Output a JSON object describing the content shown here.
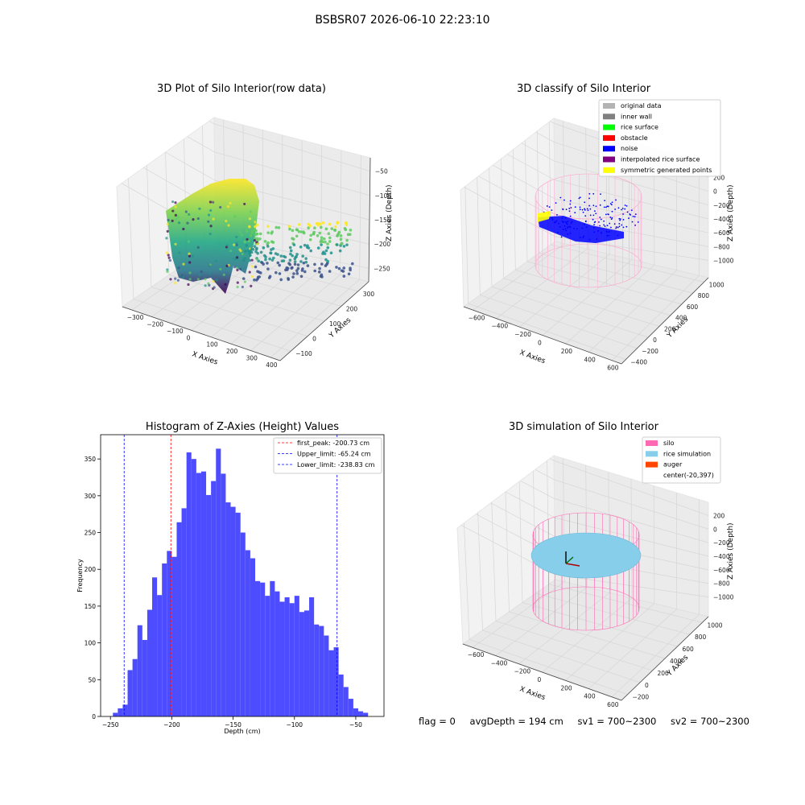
{
  "figure": {
    "suptitle": "BSBSR07 2026-06-10 22:23:10"
  },
  "footer": {
    "flag": "flag = 0",
    "avg_depth": "avgDepth = 194 cm",
    "sv1": "sv1 = 700~2300",
    "sv2": "sv2 = 700~2300"
  },
  "colors": {
    "histogram_bar": "#4d4dff",
    "first_peak_line": "#ff0000",
    "limit_lines": "#0000ff",
    "silo_mesh": "#ff69b4",
    "rice_simulation": "#87ceeb",
    "auger": "#ff4500",
    "original_data": "#b3b3b3",
    "inner_wall": "#808080",
    "rice_surface": "#00ff00",
    "obstacle": "#ff0000",
    "noise": "#0000ff",
    "interpolated_rice_surface": "#800080",
    "symmetric_generated_points": "#ffff00"
  },
  "chart_data": [
    {
      "type": "scatter",
      "subtype": "3d",
      "title": "3D Plot of Silo Interior(row data)",
      "xlabel": "X Axies",
      "ylabel": "Y Axies",
      "zlabel": "Z Axies (Depth)",
      "xticks": [
        "−300",
        "−200",
        "−100",
        "0",
        "100",
        "200",
        "300",
        "400"
      ],
      "yticks": [
        "−100",
        "0",
        "100",
        "200",
        "300"
      ],
      "zticks": [
        "−50",
        "−100",
        "−150",
        "−200",
        "−250"
      ],
      "colormap": "viridis"
    },
    {
      "type": "scatter",
      "subtype": "3d",
      "title": "3D classify of Silo Interior",
      "xlabel": "X Axies",
      "ylabel": "Y Axies",
      "zlabel": "Z Axies (Depth)",
      "xticks": [
        "−600",
        "−400",
        "−200",
        "0",
        "200",
        "400",
        "600"
      ],
      "yticks": [
        "−400",
        "−200",
        "0",
        "200",
        "400",
        "600",
        "800",
        "1000"
      ],
      "zticks": [
        "200",
        "0",
        "−200",
        "−400",
        "−600",
        "−800",
        "−1000"
      ],
      "legend": [
        {
          "label": "original data",
          "color": "#b3b3b3"
        },
        {
          "label": "inner wall",
          "color": "#808080"
        },
        {
          "label": "rice surface",
          "color": "#00ff00"
        },
        {
          "label": "obstacle",
          "color": "#ff0000"
        },
        {
          "label": "noise",
          "color": "#0000ff"
        },
        {
          "label": "interpolated rice surface",
          "color": "#800080"
        },
        {
          "label": "symmetric generated points",
          "color": "#ffff00"
        }
      ],
      "legend_position": "top-right"
    },
    {
      "type": "bar",
      "subtype": "histogram",
      "title": "Histogram of Z-Axies (Height) Values",
      "xlabel": "Depth (cm)",
      "ylabel": "Frequency",
      "xlim": [
        -258,
        -27
      ],
      "ylim": [
        0,
        383
      ],
      "xticks": [
        -250,
        -200,
        -150,
        -100,
        -50
      ],
      "yticks": [
        0,
        50,
        100,
        150,
        200,
        250,
        300,
        350
      ],
      "bin_start": -248,
      "bin_width": 4,
      "values": [
        5,
        11,
        16,
        63,
        78,
        124,
        104,
        145,
        189,
        165,
        208,
        225,
        217,
        264,
        283,
        359,
        350,
        331,
        333,
        301,
        320,
        364,
        330,
        291,
        285,
        277,
        250,
        226,
        215,
        184,
        182,
        164,
        184,
        170,
        156,
        162,
        154,
        164,
        142,
        144,
        162,
        125,
        123,
        110,
        90,
        94,
        57,
        40,
        24,
        11,
        7,
        5
      ],
      "lines": [
        {
          "label": "first_peak: -200.73 cm",
          "x": -200.73,
          "color": "#ff0000"
        },
        {
          "label": "Upper_limit: -65.24 cm",
          "x": -65.24,
          "color": "#0000ff"
        },
        {
          "label": "Lower_limit: -238.83 cm",
          "x": -238.83,
          "color": "#0000ff"
        }
      ],
      "legend_position": "top-right"
    },
    {
      "type": "scatter",
      "subtype": "3d",
      "title": "3D simulation of Silo Interior",
      "xlabel": "X Axies",
      "ylabel": "Y Axies",
      "zlabel": "Z Axies (Depth)",
      "xticks": [
        "−600",
        "−400",
        "−200",
        "0",
        "200",
        "400",
        "600"
      ],
      "yticks": [
        "−200",
        "0",
        "200",
        "400",
        "600",
        "800",
        "1000"
      ],
      "zticks": [
        "200",
        "0",
        "−200",
        "−400",
        "−600",
        "−800",
        "−1000"
      ],
      "legend": [
        {
          "label": "silo",
          "color": "#ff69b4"
        },
        {
          "label": "rice simulation",
          "color": "#87ceeb"
        },
        {
          "label": "auger",
          "color": "#ff4500"
        },
        {
          "label": "center(-20,397)",
          "color": ""
        }
      ],
      "legend_position": "top-right"
    }
  ]
}
